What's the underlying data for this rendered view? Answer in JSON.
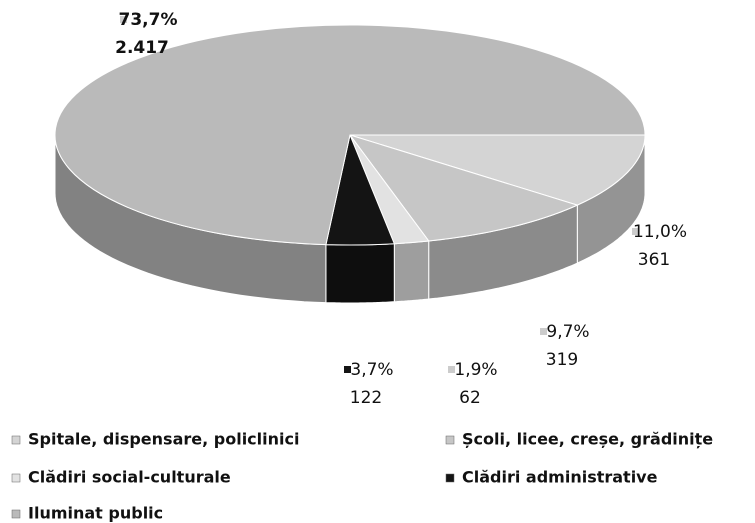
{
  "chart_data": {
    "type": "pie3d",
    "categories": [
      "Spitale, dispensare, policlinici",
      "Școli, licee, creșe, grădinițe",
      "Clădiri social-culturale",
      "Clădiri administrative",
      "Iluminat public"
    ],
    "values": [
      11.0,
      9.7,
      1.9,
      3.7,
      73.7
    ],
    "value_labels": [
      "11,0%",
      "9,7%",
      "1,9%",
      "3,7%",
      "73,7%"
    ],
    "amounts": [
      361,
      319,
      62,
      122,
      2417
    ],
    "amount_labels": [
      "361",
      "319",
      "62",
      "122",
      "2.417"
    ],
    "colors": [
      "#d4d4d4",
      "#c6c6c6",
      "#e2e2e2",
      "#141414",
      "#bababa"
    ],
    "legend": "bottom"
  }
}
